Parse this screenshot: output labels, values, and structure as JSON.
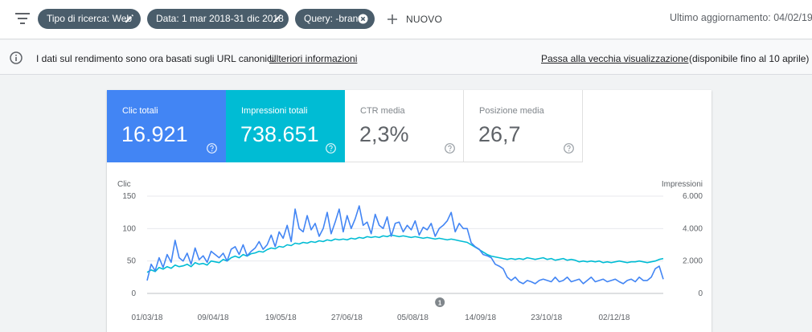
{
  "filter_bar": {
    "chips": [
      {
        "label": "Tipo di ricerca: Web",
        "action": "pencil"
      },
      {
        "label": "Data: 1 mar 2018-31 dic 2018",
        "action": "pencil"
      },
      {
        "label": "Query: -brand",
        "action": "close"
      }
    ],
    "new_label": "NUOVO",
    "last_update": "Ultimo aggiornamento: 04/02/19"
  },
  "info_bar": {
    "text": "I dati sul rendimento sono ora basati sugli URL canonici.",
    "link": "Ulteriori informazioni",
    "old_view_link": "Passa alla vecchia visualizzazione",
    "availability": "(disponibile fino al 10 aprile)"
  },
  "metrics": [
    {
      "label": "Clic totali",
      "value": "16.921",
      "selected": true,
      "color": "#4285f4"
    },
    {
      "label": "Impressioni totali",
      "value": "738.651",
      "selected": true,
      "color": "#00bcd4"
    },
    {
      "label": "CTR media",
      "value": "2,3%",
      "selected": false
    },
    {
      "label": "Posizione media",
      "value": "26,7",
      "selected": false
    }
  ],
  "chart_data": {
    "type": "line",
    "left_axis_label": "Clic",
    "right_axis_label": "Impressioni",
    "y_left_range": [
      0,
      150
    ],
    "y_left_ticks": [
      "150",
      "100",
      "50",
      "0"
    ],
    "y_right_range": [
      0,
      6000
    ],
    "y_right_ticks": [
      "6.000",
      "4.000",
      "2.000",
      "0"
    ],
    "x_ticks": [
      "01/03/18",
      "09/04/18",
      "19/05/18",
      "27/06/18",
      "05/08/18",
      "14/09/18",
      "23/10/18",
      "02/12/18"
    ],
    "grid": true,
    "annotation": {
      "label": "1",
      "date": "2018-08-21"
    },
    "series": [
      {
        "name": "Clic",
        "axis": "left",
        "color": "#4285f4",
        "values": [
          20,
          45,
          35,
          55,
          40,
          60,
          48,
          82,
          55,
          50,
          62,
          45,
          70,
          52,
          58,
          48,
          65,
          60,
          55,
          62,
          50,
          68,
          72,
          60,
          75,
          58,
          65,
          70,
          80,
          68,
          75,
          90,
          72,
          95,
          85,
          105,
          80,
          130,
          100,
          95,
          120,
          98,
          108,
          88,
          100,
          125,
          92,
          110,
          130,
          95,
          120,
          100,
          115,
          135,
          105,
          110,
          92,
          122,
          105,
          100,
          118,
          88,
          108,
          110,
          95,
          105,
          98,
          112,
          90,
          102,
          98,
          108,
          88,
          100,
          105,
          112,
          125,
          95,
          108,
          100,
          100,
          78,
          72,
          68,
          60,
          58,
          55,
          45,
          42,
          38,
          25,
          20,
          25,
          18,
          15,
          20,
          18,
          15,
          20,
          22,
          20,
          18,
          25,
          18,
          20,
          25,
          18,
          20,
          22,
          15,
          20,
          25,
          18,
          20,
          22,
          18,
          20,
          22,
          18,
          15,
          20,
          22,
          18,
          25,
          20,
          20,
          25,
          38,
          42,
          22
        ]
      },
      {
        "name": "Impressioni",
        "axis": "right",
        "color": "#00bcd4",
        "values": [
          1300,
          1450,
          1350,
          1600,
          1500,
          1650,
          1550,
          1750,
          1650,
          1700,
          1800,
          1650,
          1900,
          1800,
          1850,
          1750,
          2000,
          1950,
          1900,
          2100,
          2000,
          2200,
          2300,
          2200,
          2400,
          2300,
          2450,
          2500,
          2600,
          2550,
          2700,
          2800,
          2750,
          2900,
          2850,
          3000,
          2950,
          3100,
          3050,
          3150,
          3100,
          3200,
          3150,
          3250,
          3200,
          3300,
          3250,
          3350,
          3300,
          3350,
          3300,
          3400,
          3350,
          3450,
          3400,
          3500,
          3450,
          3500,
          3450,
          3550,
          3500,
          3600,
          3550,
          3500,
          3550,
          3500,
          3450,
          3500,
          3450,
          3400,
          3450,
          3400,
          3350,
          3400,
          3350,
          3300,
          3350,
          3300,
          3250,
          3200,
          3150,
          3000,
          2850,
          2700,
          2550,
          2400,
          2300,
          2250,
          2200,
          2150,
          2100,
          2150,
          2100,
          2150,
          2100,
          2200,
          2150,
          2100,
          2150,
          2200,
          2100,
          2150,
          2050,
          2100,
          2150,
          2050,
          2100,
          2050,
          1950,
          2000,
          1950,
          2000,
          1950,
          2000,
          1900,
          1950,
          1900,
          1950,
          2000,
          1950,
          1900,
          1950,
          1950,
          2000,
          1950,
          1900,
          1950,
          2000,
          2100,
          2150
        ]
      }
    ]
  }
}
